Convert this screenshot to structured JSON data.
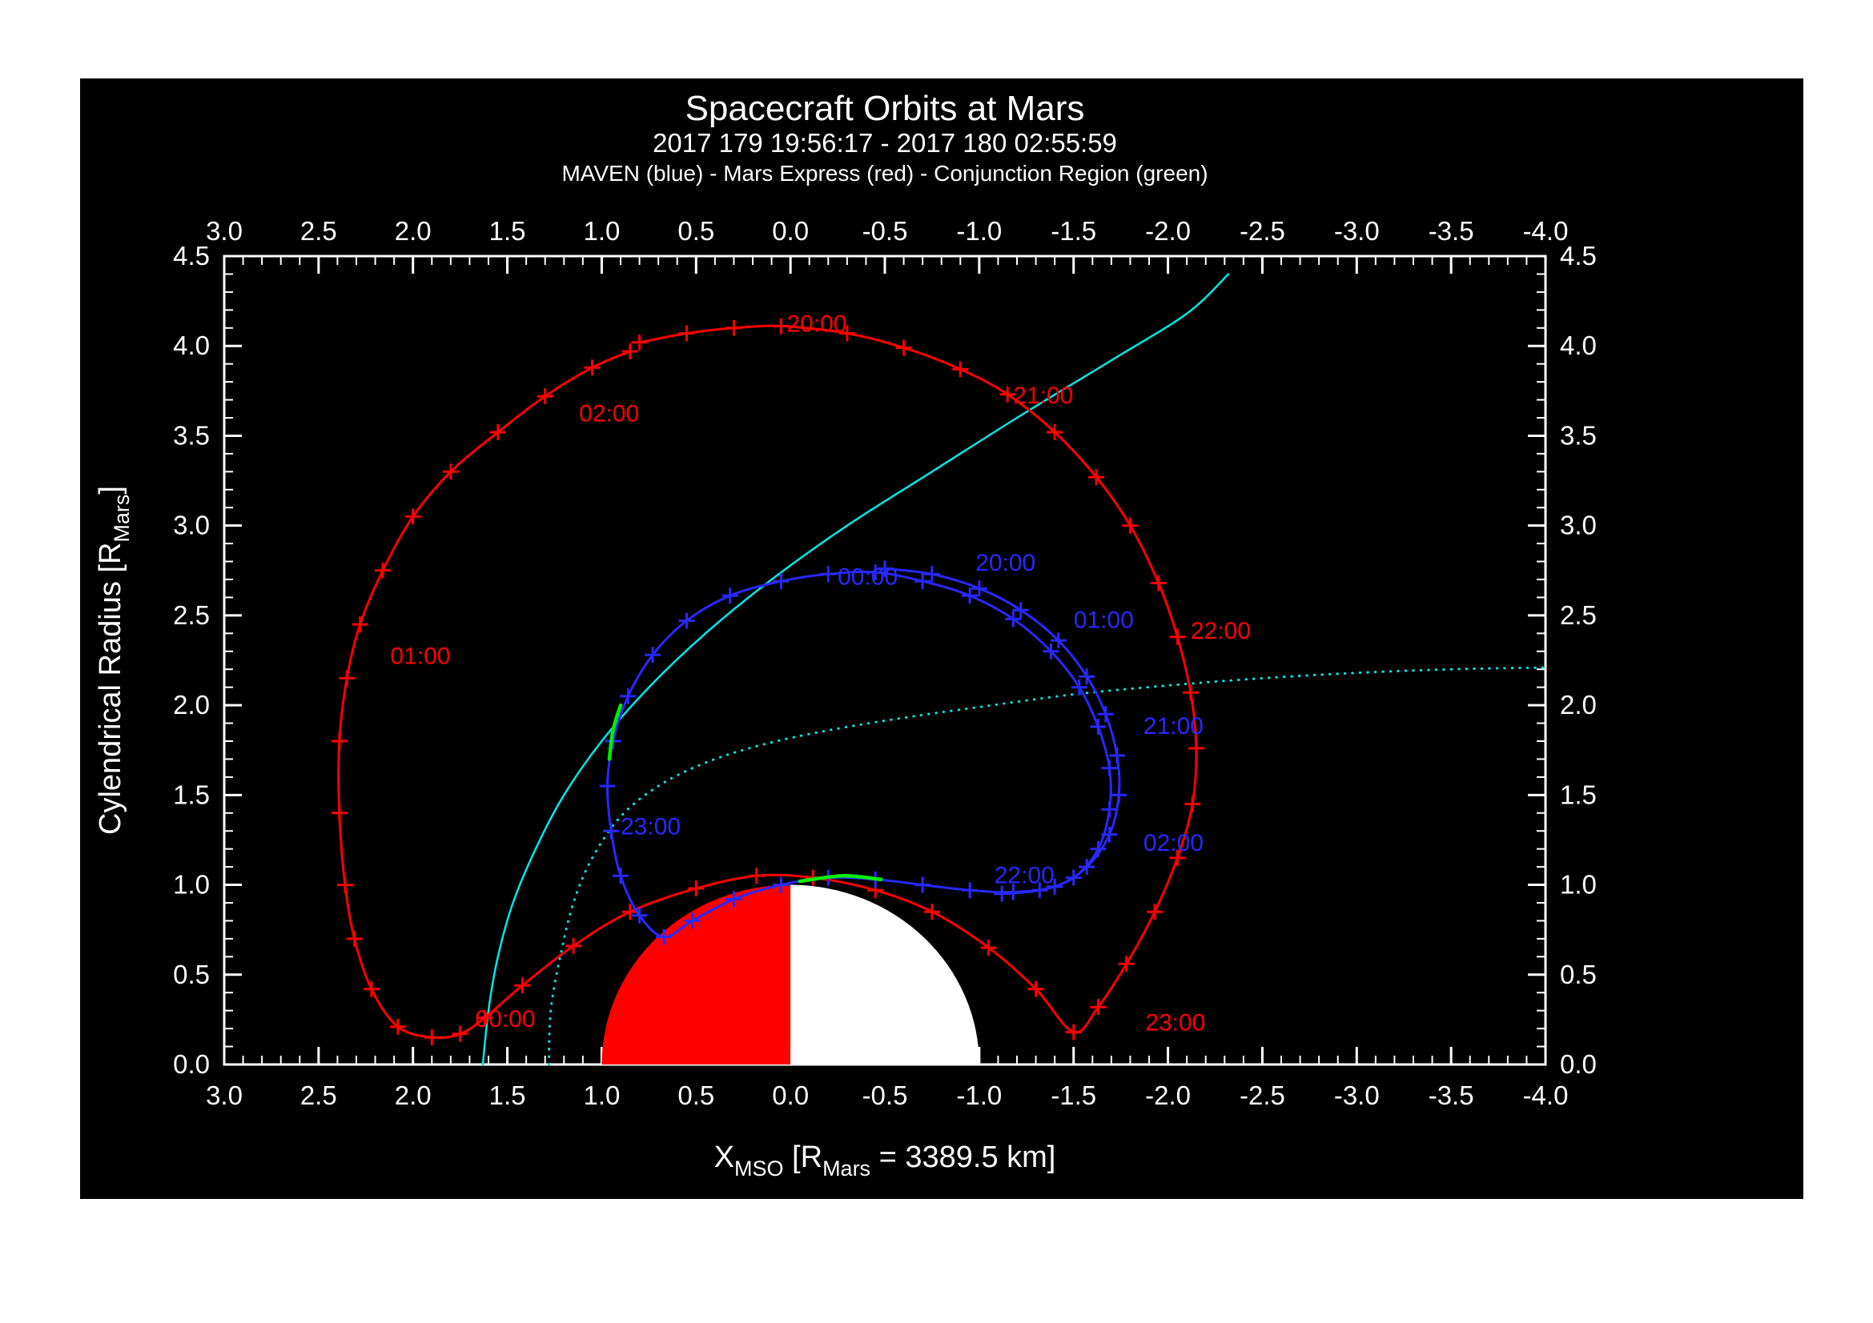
{
  "header": {
    "title": "Spacecraft Orbits at Mars",
    "time_range": "2017 179 19:56:17 - 2017 180 02:55:59",
    "legend": "MAVEN (blue) - Mars Express (red) - Conjunction Region (green)"
  },
  "colors": {
    "background": "#000000",
    "frame": "#ffffff",
    "maven_blue": "#2828ff",
    "mars_express_red": "#ff0000",
    "conjunction_green": "#00ee00",
    "boundary_cyan": "#00e8e8",
    "mars_day": "#ff0000",
    "mars_night": "#ffffff"
  },
  "chart_data": {
    "type": "line",
    "title": "Spacecraft Orbits at Mars",
    "subtitle": "2017 179 19:56:17 - 2017 180 02:55:59",
    "legend_line": "MAVEN (blue) - Mars Express (red) - Conjunction Region (green)",
    "x_range": [
      3.0,
      -4.0
    ],
    "y_range": [
      0.0,
      4.5
    ],
    "x_tick_values": [
      3.0,
      2.5,
      2.0,
      1.5,
      1.0,
      0.5,
      0.0,
      -0.5,
      -1.0,
      -1.5,
      -2.0,
      -2.5,
      -3.0,
      -3.5,
      -4.0
    ],
    "x_tick_labels": [
      "3.0",
      "2.5",
      "2.0",
      "1.5",
      "1.0",
      "0.5",
      "0.0",
      "-0.5",
      "-1.0",
      "-1.5",
      "-2.0",
      "-2.5",
      "-3.0",
      "-3.5",
      "-4.0"
    ],
    "y_tick_values": [
      0.0,
      0.5,
      1.0,
      1.5,
      2.0,
      2.5,
      3.0,
      3.5,
      4.0,
      4.5
    ],
    "y_tick_labels": [
      "0.0",
      "0.5",
      "1.0",
      "1.5",
      "2.0",
      "2.5",
      "3.0",
      "3.5",
      "4.0",
      "4.5"
    ],
    "minor_tick_step": 0.1,
    "x_title_parts": [
      {
        "text": "X"
      },
      {
        "text": "MSO",
        "sub": true
      },
      {
        "text": " [R"
      },
      {
        "text": "Mars",
        "sub": true
      },
      {
        "text": " = 3389.5 km]"
      }
    ],
    "y_title_parts": [
      {
        "text": "Cylendrical Radius [R"
      },
      {
        "text": "Mars",
        "sub": true
      },
      {
        "text": "]"
      }
    ],
    "mars": {
      "center_x": 0.0,
      "center_r": 0.0,
      "radius": 1.0,
      "day_color": "#ff0000",
      "night_color": "#ffffff"
    },
    "series": [
      {
        "name": "bow-shock-boundary",
        "color": "#00e8e8",
        "style": "solid",
        "width": 2.5,
        "plus_markers": false,
        "points": [
          [
            1.63,
            0.0
          ],
          [
            1.6,
            0.3
          ],
          [
            1.55,
            0.6
          ],
          [
            1.47,
            0.9
          ],
          [
            1.35,
            1.2
          ],
          [
            1.2,
            1.5
          ],
          [
            1.0,
            1.8
          ],
          [
            0.75,
            2.1
          ],
          [
            0.45,
            2.4
          ],
          [
            0.1,
            2.7
          ],
          [
            -0.3,
            3.0
          ],
          [
            -0.75,
            3.3
          ],
          [
            -1.2,
            3.6
          ],
          [
            -1.7,
            3.92
          ],
          [
            -2.1,
            4.18
          ],
          [
            -2.32,
            4.4
          ]
        ]
      },
      {
        "name": "induced-magnetosphere-boundary",
        "color": "#00e8e8",
        "style": "dotted",
        "width": 3,
        "plus_markers": false,
        "points": [
          [
            1.28,
            0.0
          ],
          [
            1.27,
            0.3
          ],
          [
            1.22,
            0.6
          ],
          [
            1.15,
            0.9
          ],
          [
            1.05,
            1.15
          ],
          [
            0.9,
            1.38
          ],
          [
            0.7,
            1.55
          ],
          [
            0.45,
            1.68
          ],
          [
            0.15,
            1.78
          ],
          [
            -0.2,
            1.86
          ],
          [
            -0.6,
            1.93
          ],
          [
            -1.0,
            1.99
          ],
          [
            -1.5,
            2.06
          ],
          [
            -2.0,
            2.11
          ],
          [
            -2.5,
            2.15
          ],
          [
            -3.0,
            2.18
          ],
          [
            -3.5,
            2.2
          ],
          [
            -4.0,
            2.21
          ]
        ]
      },
      {
        "name": "mars-express-orbit",
        "color": "#ff0000",
        "style": "solid",
        "width": 3,
        "plus_markers": true,
        "points": [
          [
            0.8,
            4.02
          ],
          [
            0.55,
            4.07
          ],
          [
            0.3,
            4.1
          ],
          [
            0.05,
            4.11
          ],
          [
            -0.3,
            4.07
          ],
          [
            -0.6,
            3.99
          ],
          [
            -0.9,
            3.87
          ],
          [
            -1.15,
            3.73
          ],
          [
            -1.4,
            3.52
          ],
          [
            -1.62,
            3.27
          ],
          [
            -1.8,
            3.0
          ],
          [
            -1.95,
            2.68
          ],
          [
            -2.05,
            2.38
          ],
          [
            -2.12,
            2.07
          ],
          [
            -2.15,
            1.76
          ],
          [
            -2.13,
            1.45
          ],
          [
            -2.05,
            1.15
          ],
          [
            -1.93,
            0.85
          ],
          [
            -1.78,
            0.56
          ],
          [
            -1.63,
            0.32
          ],
          [
            -1.5,
            0.18
          ],
          [
            -1.3,
            0.42
          ],
          [
            -1.05,
            0.65
          ],
          [
            -0.75,
            0.85
          ],
          [
            -0.45,
            0.97
          ],
          [
            -0.12,
            1.04
          ],
          [
            0.18,
            1.05
          ],
          [
            0.5,
            0.98
          ],
          [
            0.85,
            0.85
          ],
          [
            1.15,
            0.66
          ],
          [
            1.42,
            0.44
          ],
          [
            1.62,
            0.26
          ],
          [
            1.75,
            0.17
          ],
          [
            1.9,
            0.15
          ],
          [
            2.08,
            0.21
          ],
          [
            2.22,
            0.42
          ],
          [
            2.31,
            0.7
          ],
          [
            2.36,
            1.0
          ],
          [
            2.39,
            1.4
          ],
          [
            2.39,
            1.8
          ],
          [
            2.35,
            2.15
          ],
          [
            2.28,
            2.45
          ],
          [
            2.16,
            2.75
          ],
          [
            2.0,
            3.05
          ],
          [
            1.8,
            3.3
          ],
          [
            1.55,
            3.52
          ],
          [
            1.3,
            3.72
          ],
          [
            1.05,
            3.88
          ],
          [
            0.85,
            3.97
          ]
        ]
      },
      {
        "name": "maven-orbit",
        "color": "#2828ff",
        "style": "solid",
        "width": 3,
        "plus_markers": true,
        "points": [
          [
            -0.5,
            2.76
          ],
          [
            -0.75,
            2.73
          ],
          [
            -1.0,
            2.65
          ],
          [
            -1.22,
            2.53
          ],
          [
            -1.42,
            2.36
          ],
          [
            -1.57,
            2.16
          ],
          [
            -1.67,
            1.95
          ],
          [
            -1.73,
            1.72
          ],
          [
            -1.74,
            1.5
          ],
          [
            -1.69,
            1.28
          ],
          [
            -1.57,
            1.1
          ],
          [
            -1.4,
            0.99
          ],
          [
            -1.18,
            0.96
          ],
          [
            -0.95,
            0.97
          ],
          [
            -0.7,
            1.0
          ],
          [
            -0.45,
            1.03
          ],
          [
            -0.2,
            1.04
          ],
          [
            0.05,
            1.0
          ],
          [
            0.3,
            0.92
          ],
          [
            0.52,
            0.8
          ],
          [
            0.67,
            0.71
          ],
          [
            0.8,
            0.83
          ],
          [
            0.9,
            1.05
          ],
          [
            0.95,
            1.3
          ],
          [
            0.97,
            1.55
          ],
          [
            0.94,
            1.8
          ],
          [
            0.86,
            2.05
          ],
          [
            0.73,
            2.28
          ],
          [
            0.55,
            2.47
          ],
          [
            0.32,
            2.61
          ],
          [
            0.05,
            2.69
          ],
          [
            -0.2,
            2.73
          ],
          [
            -0.45,
            2.74
          ],
          [
            -0.7,
            2.69
          ],
          [
            -0.95,
            2.61
          ],
          [
            -1.18,
            2.48
          ],
          [
            -1.38,
            2.3
          ],
          [
            -1.53,
            2.1
          ],
          [
            -1.63,
            1.88
          ],
          [
            -1.69,
            1.65
          ],
          [
            -1.69,
            1.42
          ],
          [
            -1.63,
            1.2
          ],
          [
            -1.5,
            1.04
          ],
          [
            -1.32,
            0.97
          ],
          [
            -1.12,
            0.95
          ]
        ]
      },
      {
        "name": "conjunction-region-segment-1",
        "color": "#00ee00",
        "style": "solid",
        "width": 4.5,
        "plus_markers": false,
        "points": [
          [
            0.96,
            1.7
          ],
          [
            0.94,
            1.86
          ],
          [
            0.9,
            2.0
          ]
        ]
      },
      {
        "name": "conjunction-region-segment-2",
        "color": "#00ee00",
        "style": "solid",
        "width": 4.5,
        "plus_markers": false,
        "points": [
          [
            -0.05,
            1.02
          ],
          [
            -0.28,
            1.05
          ],
          [
            -0.48,
            1.03
          ]
        ]
      }
    ],
    "time_labels": [
      {
        "text": "20:00",
        "x": 0.02,
        "r": 4.08,
        "color": "#ff0000"
      },
      {
        "text": "21:00",
        "x": -1.18,
        "r": 3.68,
        "color": "#ff0000"
      },
      {
        "text": "22:00",
        "x": -2.12,
        "r": 2.37,
        "color": "#ff0000"
      },
      {
        "text": "23:00",
        "x": -1.88,
        "r": 0.19,
        "color": "#ff0000"
      },
      {
        "text": "00:00",
        "x": 1.67,
        "r": 0.21,
        "color": "#ff0000"
      },
      {
        "text": "01:00",
        "x": 2.12,
        "r": 2.23,
        "color": "#ff0000"
      },
      {
        "text": "02:00",
        "x": 1.12,
        "r": 3.58,
        "color": "#ff0000"
      },
      {
        "text": "00:00",
        "x": -0.25,
        "r": 2.67,
        "color": "#2828ff"
      },
      {
        "text": "20:00",
        "x": -0.98,
        "r": 2.75,
        "color": "#2828ff"
      },
      {
        "text": "01:00",
        "x": -1.5,
        "r": 2.43,
        "color": "#2828ff"
      },
      {
        "text": "21:00",
        "x": -1.87,
        "r": 1.84,
        "color": "#2828ff"
      },
      {
        "text": "02:00",
        "x": -1.87,
        "r": 1.19,
        "color": "#2828ff"
      },
      {
        "text": "22:00",
        "x": -1.08,
        "r": 1.01,
        "color": "#2828ff"
      },
      {
        "text": "23:00",
        "x": 0.9,
        "r": 1.28,
        "color": "#2828ff"
      }
    ]
  }
}
